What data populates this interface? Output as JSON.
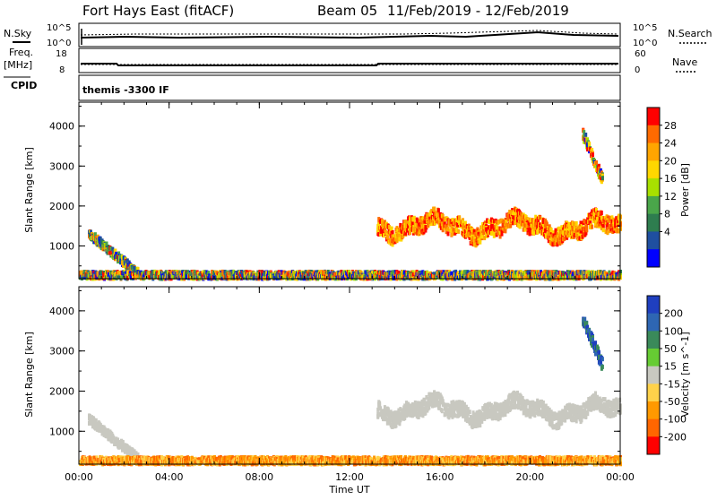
{
  "header": {
    "title": "Fort Hays East (fitACF)",
    "beam": "Beam 05",
    "date_range": "11/Feb/2019 - 12/Feb/2019"
  },
  "aux": {
    "nsky_label": "N.Sky",
    "nsearch_label": "N.Search",
    "freq_label_line1": "Freq.",
    "freq_label_line2": "[MHz]",
    "nave_label": "Nave",
    "cpid_label": "CPID",
    "cpid_value": "themis -3300 IF",
    "noise_left_top": "10^5",
    "noise_left_bottom": "10^0",
    "noise_right_top": "10^5",
    "noise_right_bottom": "10^0",
    "freq_left_top": "18",
    "freq_left_bottom": "8",
    "nave_right_top": "60",
    "nave_right_bottom": "0"
  },
  "chart_data": [
    {
      "type": "heatmap",
      "name": "power",
      "ylabel": "Slant Range [km]",
      "xlabel": "",
      "x_tick_labels": [
        "00:00",
        "04:00",
        "08:00",
        "12:00",
        "16:00",
        "20:00",
        "00:00"
      ],
      "x_range_hours": [
        0,
        24
      ],
      "y_ticks": [
        1000,
        2000,
        3000,
        4000
      ],
      "ylim": [
        180,
        4600
      ],
      "colorbar": {
        "label": "Power [dB]",
        "ticks": [
          "28",
          "24",
          "20",
          "16",
          "12",
          "8",
          "4"
        ],
        "colors": [
          "#ff0000",
          "#ff6a00",
          "#ffa500",
          "#ffd700",
          "#a8e000",
          "#4aa64a",
          "#2e7d4f",
          "#1f4fa0",
          "#0000ff"
        ]
      },
      "bands": [
        {
          "x0": 0.4,
          "x1": 2.6,
          "y0": 1300,
          "y1": 300,
          "thickness": 220,
          "level": "mixed"
        },
        {
          "x0": 0.0,
          "x1": 24.0,
          "y0": 260,
          "y1": 260,
          "thickness": 180,
          "level": "mixed"
        },
        {
          "x0": 13.2,
          "x1": 24.0,
          "y0": 1500,
          "y1": 1450,
          "thickness": 400,
          "level": "high"
        },
        {
          "x0": 22.3,
          "x1": 23.2,
          "y0": 3800,
          "y1": 2600,
          "thickness": 300,
          "level": "mixed"
        }
      ]
    },
    {
      "type": "heatmap",
      "name": "velocity",
      "ylabel": "Slant Range [km]",
      "xlabel": "Time UT",
      "x_tick_labels": [
        "00:00",
        "04:00",
        "08:00",
        "12:00",
        "16:00",
        "20:00",
        "00:00"
      ],
      "x_range_hours": [
        0,
        24
      ],
      "y_ticks": [
        1000,
        2000,
        3000,
        4000
      ],
      "ylim": [
        180,
        4600
      ],
      "colorbar": {
        "label": "Velocity [m s^-1]",
        "ticks": [
          "200",
          "100",
          "50",
          "15",
          "-15",
          "-50",
          "-100",
          "-200"
        ],
        "colors": [
          "#1f3fbf",
          "#2e66b3",
          "#3a8a5a",
          "#66cc33",
          "#c8c8c0",
          "#ffd24a",
          "#ff9900",
          "#ff6600",
          "#ff0000"
        ]
      },
      "bands": [
        {
          "x0": 0.4,
          "x1": 2.6,
          "y0": 1300,
          "y1": 300,
          "thickness": 220,
          "level": "low"
        },
        {
          "x0": 0.0,
          "x1": 24.0,
          "y0": 260,
          "y1": 260,
          "thickness": 180,
          "level": "negative"
        },
        {
          "x0": 13.2,
          "x1": 24.0,
          "y0": 1550,
          "y1": 1500,
          "thickness": 380,
          "level": "low"
        },
        {
          "x0": 22.3,
          "x1": 23.2,
          "y0": 3800,
          "y1": 2600,
          "thickness": 300,
          "level": "positive"
        }
      ]
    }
  ]
}
